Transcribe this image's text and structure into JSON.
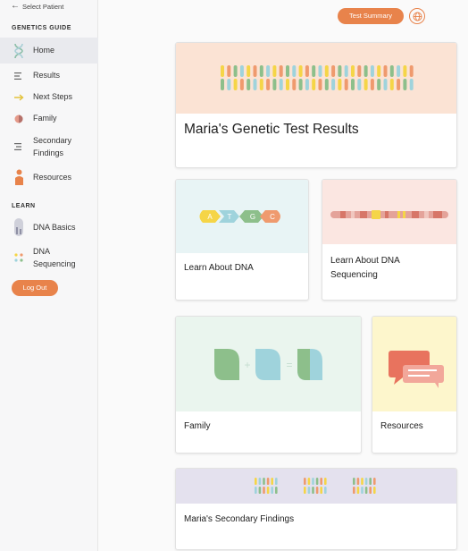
{
  "sidebar": {
    "back_label": "Select Patient",
    "genetics_guide_title": "GENETICS GUIDE",
    "items": [
      {
        "label": "Home",
        "icon": "dna-helix-icon"
      },
      {
        "label": "Results",
        "icon": "list-icon"
      },
      {
        "label": "Next Steps",
        "icon": "arrow-right-icon"
      },
      {
        "label": "Family",
        "icon": "family-icon"
      },
      {
        "label": "Secondary Findings",
        "icon": "secondary-list-icon"
      },
      {
        "label": "Resources",
        "icon": "person-icon"
      }
    ],
    "learn_title": "LEARN",
    "learn_items": [
      {
        "label": "DNA Basics",
        "icon": "chromosome-icon"
      },
      {
        "label": "DNA Sequencing",
        "icon": "dots-icon"
      }
    ],
    "logout_label": "Log Out"
  },
  "header": {
    "test_summary_label": "Test Summary",
    "language_icon": "globe-icon"
  },
  "cards": {
    "main_title": "Maria's Genetic Test Results",
    "dna_title": "Learn About DNA",
    "dna_bases": [
      "A",
      "T",
      "G",
      "C"
    ],
    "sequencing_title": "Learn About DNA Sequencing",
    "family_title": "Family",
    "resources_title": "Resources",
    "secondary_title": "Maria's Secondary Findings"
  },
  "colors": {
    "accent": "#e8834b",
    "base_a": "#f5d547",
    "base_t": "#9fd3dc",
    "base_g": "#8dbf8b",
    "base_c": "#ef9a6e"
  }
}
